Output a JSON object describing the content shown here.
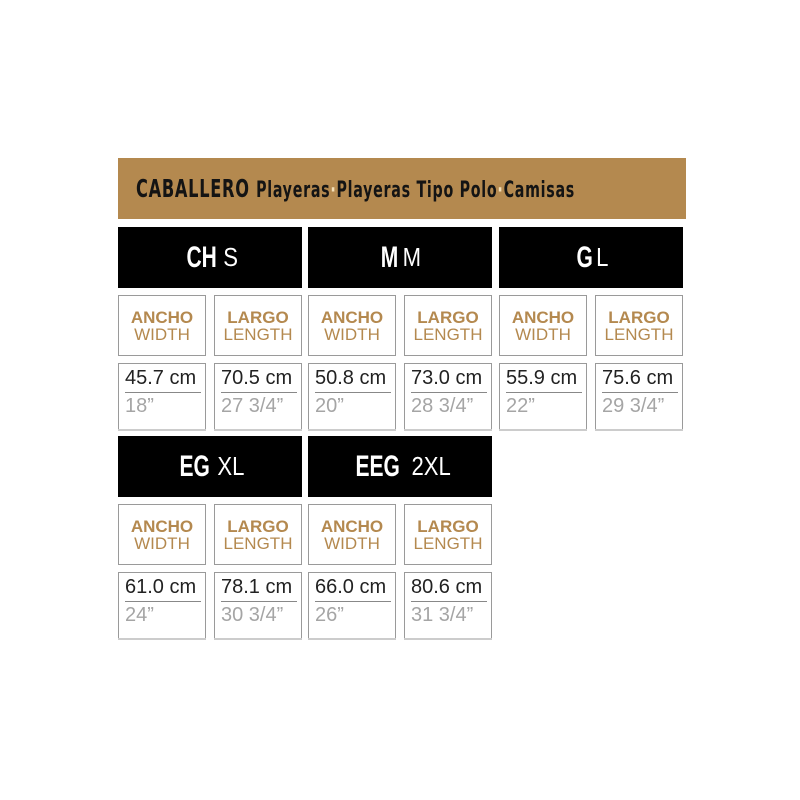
{
  "banner": {
    "title": "CABALLERO",
    "categories": [
      "Playeras",
      "Playeras Tipo Polo",
      "Camisas"
    ],
    "separator": "·",
    "color": "#b4894f"
  },
  "labels": {
    "width_es": "ANCHO",
    "width_en": "WIDTH",
    "length_es": "LARGO",
    "length_en": "LENGTH",
    "label_color": "#b4894f"
  },
  "sizes": [
    {
      "es": "CH",
      "en": "S",
      "width_cm": "45.7 cm",
      "width_in": "18”",
      "length_cm": "70.5 cm",
      "length_in": "27 3/4”"
    },
    {
      "es": "M",
      "en": "M",
      "width_cm": "50.8 cm",
      "width_in": "20”",
      "length_cm": "73.0 cm",
      "length_in": "28 3/4”"
    },
    {
      "es": "G",
      "en": "L",
      "width_cm": "55.9 cm",
      "width_in": "22”",
      "length_cm": "75.6 cm",
      "length_in": "29 3/4”"
    },
    {
      "es": "EG",
      "en": "XL",
      "width_cm": "61.0 cm",
      "width_in": "24”",
      "length_cm": "78.1 cm",
      "length_in": "30 3/4”"
    },
    {
      "es": "EEG",
      "en": "2XL",
      "width_cm": "66.0 cm",
      "width_in": "26”",
      "length_cm": "80.6 cm",
      "length_in": "31 3/4”"
    }
  ]
}
